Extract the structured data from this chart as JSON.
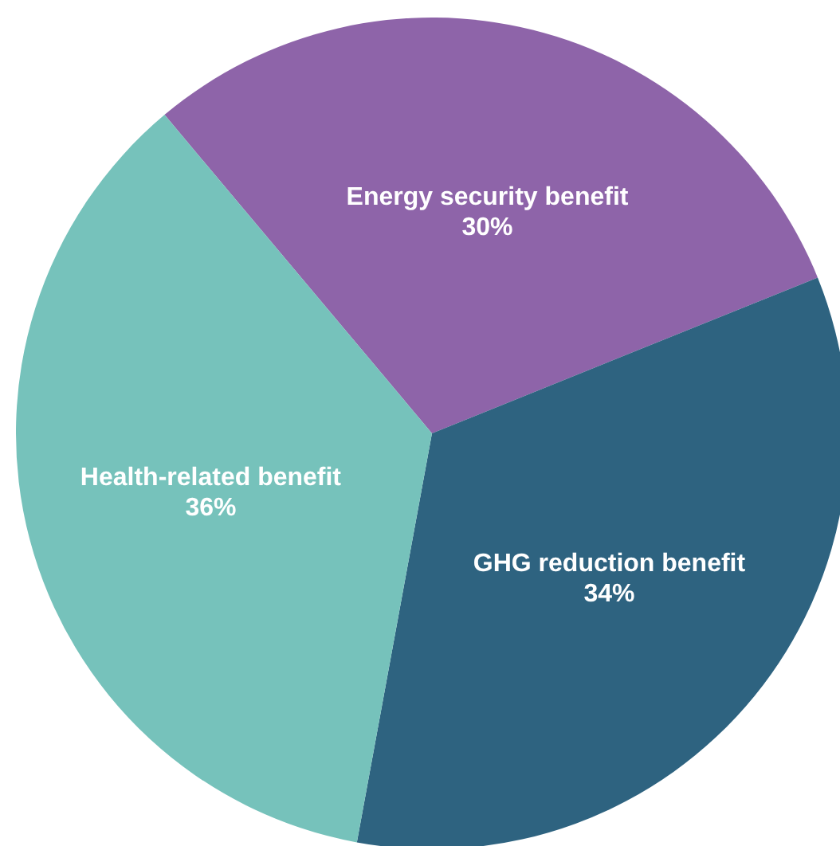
{
  "chart_data": {
    "type": "pie",
    "categories": [
      "Energy security benefit",
      "GHG reduction benefit",
      "Health-related benefit"
    ],
    "values": [
      30,
      34,
      36
    ],
    "colors": [
      "#8e64a9",
      "#2e6380",
      "#76c2bb"
    ],
    "value_labels": [
      "30%",
      "34%",
      "36%"
    ]
  }
}
